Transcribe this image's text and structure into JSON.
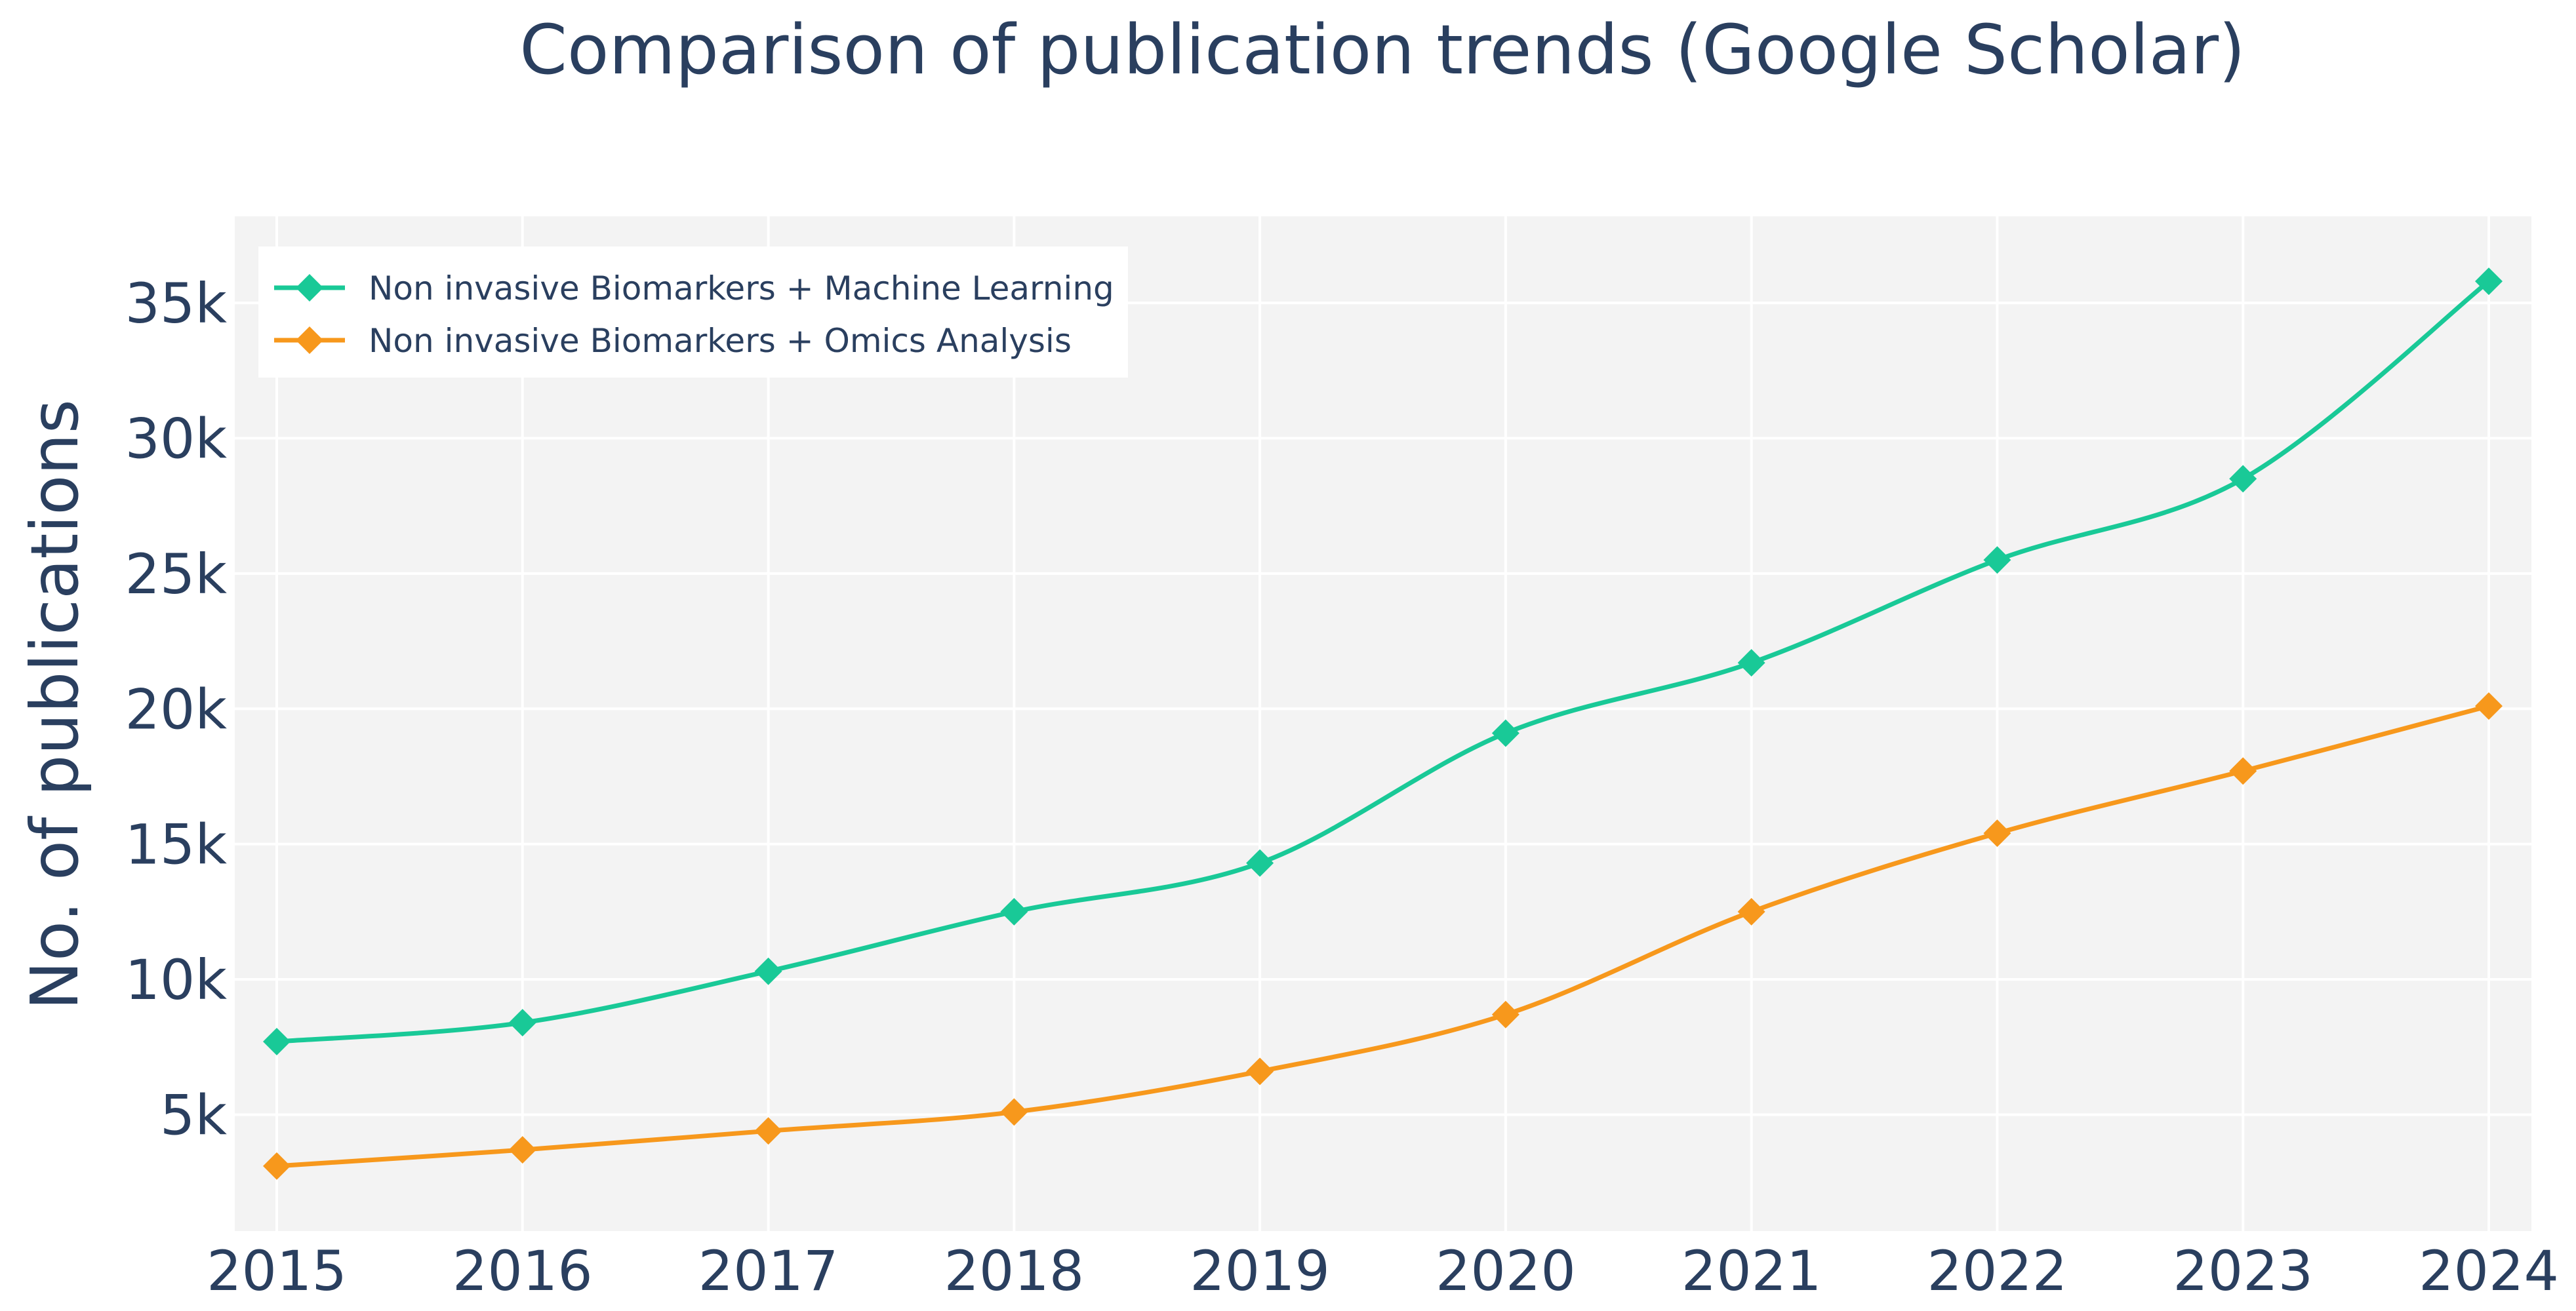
{
  "chart_data": {
    "type": "line",
    "title": "Comparison of publication trends (Google Scholar)",
    "xlabel": "",
    "ylabel": "No. of publications",
    "categories": [
      "2015",
      "2016",
      "2017",
      "2018",
      "2019",
      "2020",
      "2021",
      "2022",
      "2023",
      "2024"
    ],
    "y_ticks": [
      5000,
      10000,
      15000,
      20000,
      25000,
      30000,
      35000
    ],
    "y_tick_labels": [
      "5k",
      "10k",
      "15k",
      "20k",
      "25k",
      "30k",
      "35k"
    ],
    "ylim": [
      700,
      38200
    ],
    "grid": true,
    "legend_position": "top-left",
    "plot_background": "#f3f3f3",
    "series": [
      {
        "name": "Non invasive Biomarkers + Machine Learning",
        "color": "#19c997",
        "marker": "diamond",
        "values": [
          7700,
          8400,
          10300,
          12500,
          14300,
          19100,
          21700,
          25500,
          28500,
          35800
        ]
      },
      {
        "name": "Non invasive Biomarkers + Omics Analysis",
        "color": "#f7981c",
        "marker": "diamond",
        "values": [
          3100,
          3700,
          4400,
          5100,
          6600,
          8700,
          12500,
          15400,
          17700,
          20100
        ]
      }
    ]
  }
}
